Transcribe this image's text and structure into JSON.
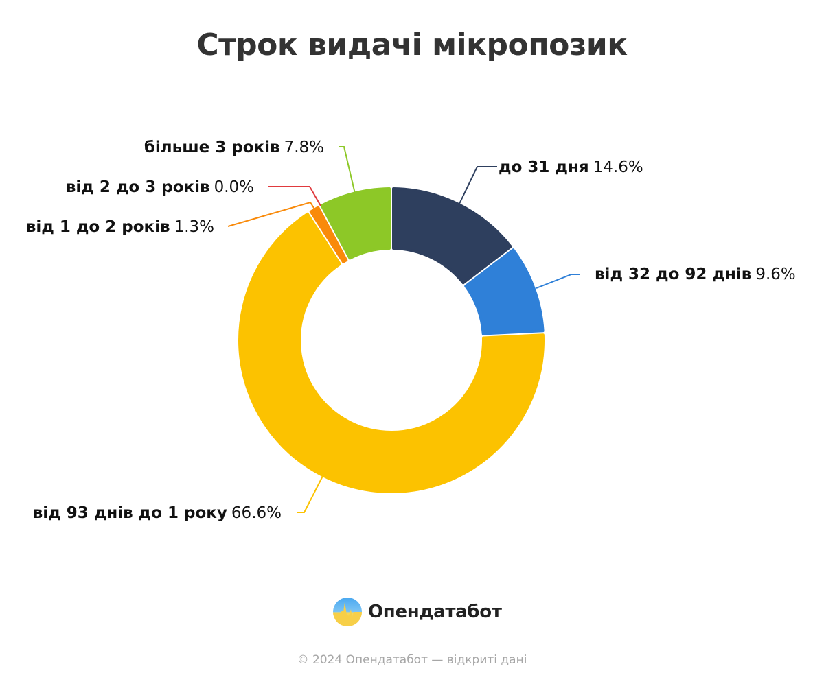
{
  "title": "Строк видачі мікропозик",
  "chart_data": {
    "type": "pie",
    "variant": "donut",
    "title": "Строк видачі мікропозик",
    "categories": [
      "до 31 дня",
      "від 32 до 92 днів",
      "від 93 днів до 1 року",
      "від 1 до 2 років",
      "від 2 до 3 років",
      "більше 3 років"
    ],
    "values": [
      14.6,
      9.6,
      66.6,
      1.3,
      0.0,
      7.8
    ],
    "unit": "%",
    "colors": [
      "#2e3f5e",
      "#2f80d8",
      "#fcc200",
      "#f98a0a",
      "#e03a3e",
      "#8dc827"
    ],
    "labels": [
      {
        "category": "до 31 дня",
        "value": "14.6%"
      },
      {
        "category": "від 32 до 92 днів",
        "value": "9.6%"
      },
      {
        "category": "від 93 днів до 1 року",
        "value": "66.6%"
      },
      {
        "category": "від 1 до 2 років",
        "value": "1.3%"
      },
      {
        "category": "від 2 до 3 років",
        "value": "0.0%"
      },
      {
        "category": "більше 3 років",
        "value": "7.8%"
      }
    ],
    "legend": "none (outside labels with leader lines)"
  },
  "brand": {
    "name": "Опендатабот",
    "logo_icon": "opendatabot-pulse-logo"
  },
  "footer": "© 2024 Опендатабот — відкриті дані"
}
